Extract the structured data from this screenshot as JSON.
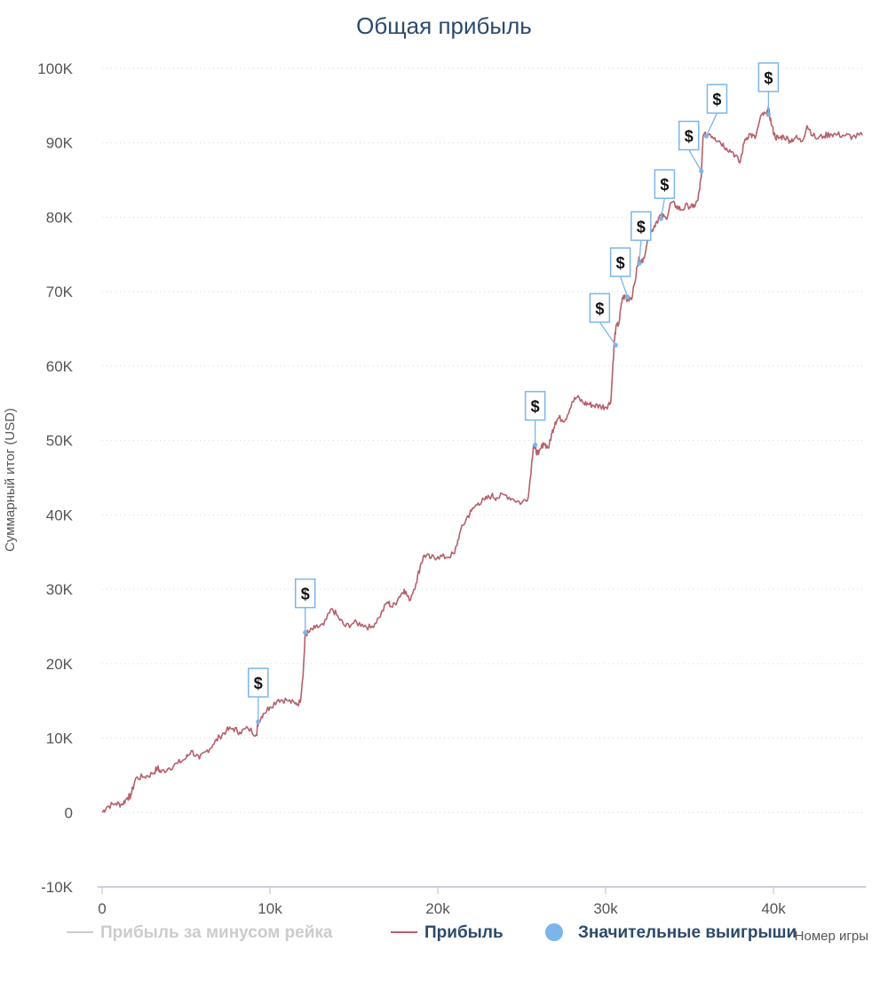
{
  "chart_data": {
    "type": "line",
    "title": "Общая прибыль",
    "xlabel": "Номер игры",
    "ylabel": "Суммарный итог (USD)",
    "xlim": [
      0,
      45500
    ],
    "ylim": [
      -10000,
      100000
    ],
    "x_ticks": [
      0,
      10000,
      20000,
      30000,
      40000
    ],
    "x_tick_labels": [
      "0",
      "10k",
      "20k",
      "30k",
      "40k"
    ],
    "y_ticks": [
      -10000,
      0,
      10000,
      20000,
      30000,
      40000,
      50000,
      60000,
      70000,
      80000,
      90000,
      100000
    ],
    "y_tick_labels": [
      "-10K",
      "0",
      "10K",
      "20K",
      "30K",
      "40K",
      "50K",
      "60K",
      "70K",
      "80K",
      "90K",
      "100K"
    ],
    "grid": true,
    "legend_placement": "bottom",
    "series": [
      {
        "name": "Прибыль за минусом рейка",
        "color": "#cccccc",
        "visible": false,
        "x": [],
        "y": []
      },
      {
        "name": "Прибыль",
        "color": "#b5606a",
        "visible": true,
        "x": [
          0,
          300,
          800,
          1200,
          1500,
          1700,
          2000,
          2500,
          3000,
          3300,
          3500,
          4000,
          4500,
          5000,
          5300,
          5800,
          6200,
          6600,
          7000,
          7400,
          7800,
          8200,
          8700,
          9200,
          9300,
          9600,
          10000,
          10500,
          11000,
          11500,
          11800,
          12000,
          12100,
          12300,
          12700,
          13200,
          13700,
          14100,
          14500,
          15000,
          15500,
          16000,
          16500,
          17000,
          17300,
          17700,
          18000,
          18300,
          18700,
          19000,
          19200,
          19600,
          20000,
          20500,
          21000,
          21300,
          21700,
          22000,
          22400,
          22800,
          23200,
          23500,
          24000,
          24500,
          25000,
          25400,
          25700,
          25800,
          26000,
          26300,
          26600,
          26800,
          27000,
          27200,
          27600,
          28000,
          28300,
          28700,
          29000,
          29300,
          29700,
          30000,
          30300,
          30500,
          30600,
          30800,
          31000,
          31200,
          31300,
          31600,
          31900,
          32000,
          32200,
          32500,
          32700,
          33000,
          33300,
          33600,
          33900,
          34200,
          34500,
          34900,
          35200,
          35500,
          35700,
          35800,
          36200,
          36500,
          36800,
          37200,
          37600,
          38000,
          38300,
          38600,
          38900,
          39300,
          39600,
          39700,
          39900,
          40100,
          40300,
          40600,
          41000,
          41300,
          41700,
          42000,
          42500,
          43000,
          43400,
          43800,
          44300,
          44700,
          45300
        ],
        "y": [
          0,
          800,
          1200,
          1100,
          2000,
          2200,
          4600,
          4800,
          5200,
          6000,
          5400,
          6000,
          6600,
          7300,
          8300,
          7200,
          8200,
          9100,
          10200,
          11000,
          11300,
          10800,
          11300,
          10500,
          12200,
          13300,
          14200,
          15200,
          15100,
          14600,
          14800,
          19500,
          24000,
          24200,
          24800,
          25200,
          27400,
          26100,
          25000,
          25500,
          25300,
          24800,
          26200,
          28300,
          27600,
          29000,
          30000,
          28500,
          30800,
          33500,
          34600,
          34200,
          34400,
          34300,
          34800,
          37500,
          39500,
          40500,
          41600,
          42000,
          42600,
          42300,
          42700,
          42100,
          41600,
          42500,
          49400,
          48900,
          48100,
          49700,
          49000,
          51000,
          52500,
          53000,
          52800,
          55200,
          55800,
          55000,
          54900,
          54700,
          54600,
          54500,
          55100,
          62800,
          65000,
          65900,
          69200,
          69300,
          68900,
          69500,
          73500,
          74500,
          73900,
          77000,
          78000,
          79300,
          80300,
          79800,
          82000,
          81500,
          81000,
          81600,
          81300,
          82300,
          85500,
          90900,
          91200,
          90700,
          90200,
          89300,
          88700,
          87300,
          90500,
          91200,
          90600,
          93800,
          93800,
          94500,
          92300,
          90800,
          90600,
          90900,
          90300,
          90700,
          90200,
          92300,
          90600,
          90900,
          91200,
          91100,
          91000,
          90800,
          91000
        ]
      },
      {
        "name": "Значительные выигрыши",
        "color": "#7cb5ec",
        "visible": true,
        "marker_symbol": "$",
        "x": [
          9300,
          12100,
          25800,
          30600,
          31300,
          32000,
          33300,
          35700,
          36000,
          39700
        ],
        "y": [
          12200,
          24200,
          49400,
          62800,
          69300,
          73800,
          79800,
          86200,
          90900,
          93800
        ]
      }
    ]
  }
}
